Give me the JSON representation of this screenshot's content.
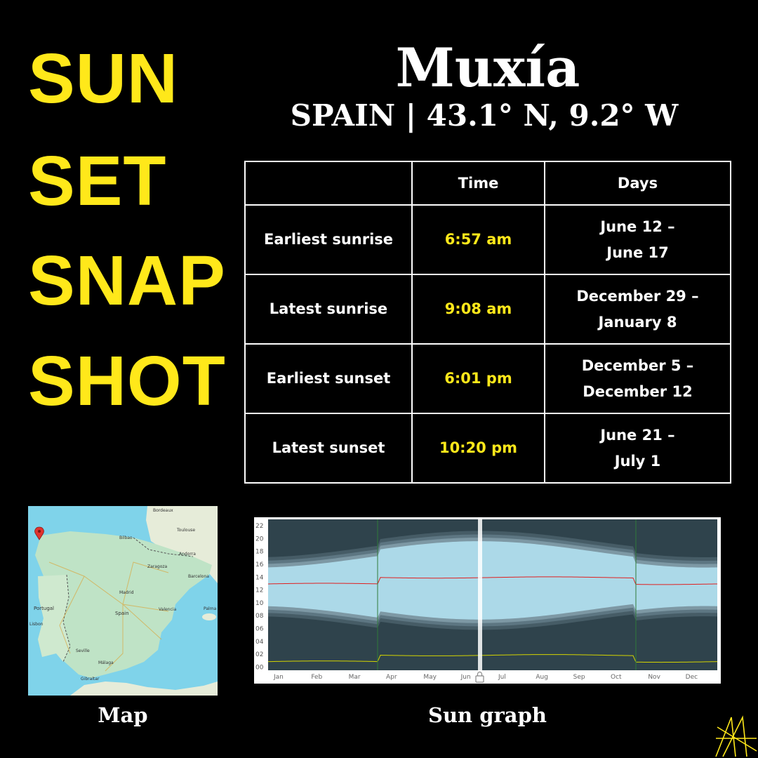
{
  "title_words": [
    "SUN",
    "SET",
    "SNAP",
    "SHOT"
  ],
  "city": "Muxía",
  "subtitle": "SPAIN | 43.1° N, 9.2° W",
  "table": {
    "headers": [
      "",
      "Time",
      "Days"
    ],
    "rows": [
      {
        "label": "Earliest sunrise",
        "time": "6:57 am",
        "days_line1": "June 12 –",
        "days_line2": "June 17"
      },
      {
        "label": "Latest sunrise",
        "time": "9:08 am",
        "days_line1": "December 29 –",
        "days_line2": "January 8"
      },
      {
        "label": "Earliest sunset",
        "time": "6:01 pm",
        "days_line1": "December 5 –",
        "days_line2": "December 12"
      },
      {
        "label": "Latest sunset",
        "time": "10:20 pm",
        "days_line1": "June 21 –",
        "days_line2": "July 1"
      }
    ]
  },
  "map": {
    "label": "Map",
    "places": [
      "Bordeaux",
      "Toulouse",
      "Bilbao",
      "Andorra",
      "Zaragoza",
      "Barcelona",
      "Madrid",
      "Portugal",
      "Spain",
      "Valencia",
      "Lisbon",
      "Seville",
      "Málaga",
      "Gibraltar",
      "Palma"
    ],
    "marker_icon": "map-pin-icon"
  },
  "graph": {
    "label": "Sun graph",
    "y_ticks": [
      "22",
      "20",
      "18",
      "16",
      "14",
      "12",
      "10",
      "08",
      "06",
      "04",
      "02",
      "00"
    ],
    "months": [
      "Jan",
      "Feb",
      "Mar",
      "Apr",
      "May",
      "Jun",
      "Jul",
      "Aug",
      "Sep",
      "Oct",
      "Nov",
      "Dec"
    ],
    "colors": {
      "day": "#acd9e8",
      "night": "#2f434c",
      "noon": "#e02020",
      "moon": "#d4d400"
    }
  },
  "logo_icon": "star-logo-icon"
}
